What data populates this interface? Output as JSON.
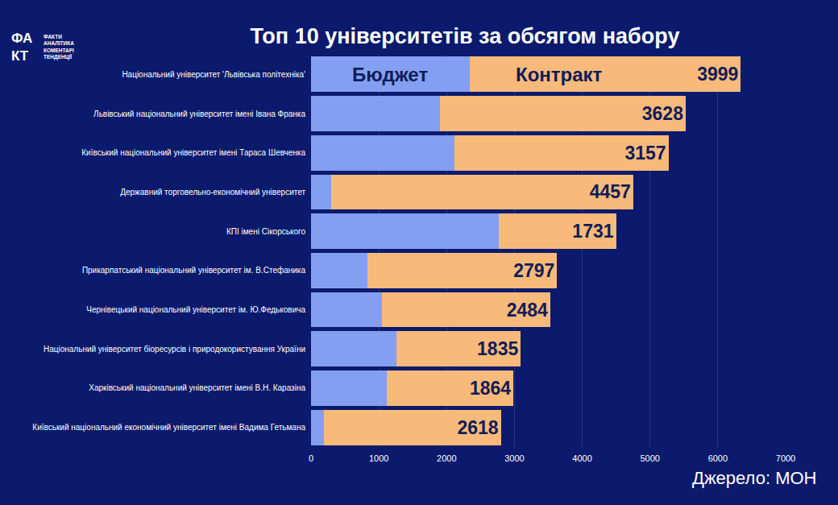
{
  "chart_data": {
    "type": "bar",
    "orientation": "horizontal",
    "stacked": true,
    "title": "Топ 10 університетів за обсягом набору",
    "categories": [
      "Національний університет 'Львівська політехніка'",
      "Львівський національний університет імені Івана Франка",
      "Київський національний університет імені Тараса Шевченка",
      "Державний торговельно-економічний університет",
      "КПІ імені Сікорського",
      "Прикарпатський національний університет ім. В.Стефаника",
      "Чернівецький національний університет ім. Ю.Федьковича",
      "Національний університет біоресурсів і природокористування України",
      "Харківський національний університет імені В.Н. Каразіна",
      "Київський національний економічний університет імені Вадима Гетьмана"
    ],
    "series": [
      {
        "name": "Бюджет",
        "color": "#849ff2",
        "data_labels": false,
        "values": [
          2340,
          1900,
          2115,
          295,
          2770,
          832,
          1047,
          1260,
          1123,
          185
        ]
      },
      {
        "name": "Контракт",
        "color": "#f7ba7a",
        "data_labels": true,
        "values": [
          3999,
          3628,
          3157,
          4457,
          1731,
          2797,
          2484,
          1835,
          1864,
          2618
        ]
      }
    ],
    "xlim": [
      0,
      7000
    ],
    "xticks": [
      0,
      1000,
      2000,
      3000,
      4000,
      5000,
      6000,
      7000
    ],
    "grid": true,
    "source": "Джерело: МОН",
    "logo": {
      "mark": "ФАКТ",
      "tagline": [
        "ФАКТИ",
        "АНАЛІТИКА",
        "КОМЕНТАРІ",
        "ТЕНДЕНЦІЇ"
      ]
    }
  }
}
